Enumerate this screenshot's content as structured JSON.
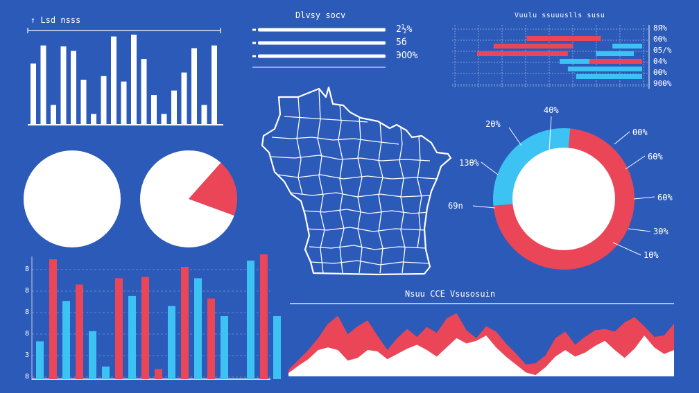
{
  "panels": {
    "top_left": {
      "title": "↑ Lsd nsss"
    },
    "top_center": {
      "title": "Dlvsy socv"
    },
    "top_right": {
      "title": "Vuulu ssuuuslls susu"
    },
    "lower_right": {
      "title": "Nsuu CCE Vsusosuin"
    }
  },
  "colors": {
    "background": "#2c5ab8",
    "white": "#ffffff",
    "red": "#ea4658",
    "cyan": "#3cc3f4"
  },
  "chart_data": [
    {
      "id": "top-left-bars",
      "type": "bar",
      "title": "↑ Lsd nsss",
      "values": [
        68,
        88,
        22,
        87,
        82,
        50,
        12,
        54,
        98,
        48,
        100,
        73,
        33,
        12,
        38,
        58,
        85,
        22,
        88
      ],
      "ylim": [
        0,
        100
      ]
    },
    {
      "id": "top-center-progress",
      "type": "bar",
      "title": "Dlvsy socv",
      "series": [
        {
          "label": "2½%",
          "value": 100
        },
        {
          "label": "5б",
          "value": 100
        },
        {
          "label": "ЭОО%",
          "value": 100
        }
      ]
    },
    {
      "id": "top-right-bars",
      "type": "bar",
      "title": "Vuulu ssuuuslls susu",
      "tick_labels": [
        "8Я%",
        "0Ѳ%",
        "Ѳ5/%",
        "Ѳ4%",
        "ѲѲ%",
        "90Ѳ%"
      ],
      "rows": [
        {
          "segments": [
            {
              "color": "red",
              "start": 0.3,
              "end": 0.75
            }
          ]
        },
        {
          "segments": [
            {
              "color": "red",
              "start": 0.1,
              "end": 0.58
            },
            {
              "color": "cyan",
              "start": 0.82,
              "end": 1.0
            }
          ]
        },
        {
          "segments": [
            {
              "color": "red",
              "start": 0.0,
              "end": 0.55
            },
            {
              "color": "cyan",
              "start": 0.72,
              "end": 0.95
            }
          ]
        },
        {
          "segments": [
            {
              "color": "cyan",
              "start": 0.5,
              "end": 0.8
            },
            {
              "color": "red",
              "start": 0.68,
              "end": 1.0
            }
          ]
        },
        {
          "segments": [
            {
              "color": "cyan",
              "start": 0.55,
              "end": 1.0
            }
          ]
        },
        {
          "segments": [
            {
              "color": "cyan",
              "start": 0.6,
              "end": 1.0
            }
          ]
        }
      ]
    },
    {
      "id": "pie-left",
      "type": "pie",
      "slices": [
        {
          "label": "",
          "value": 100,
          "color": "white"
        }
      ]
    },
    {
      "id": "pie-middle",
      "type": "pie",
      "slices": [
        {
          "label": "",
          "value": 81,
          "color": "white"
        },
        {
          "label": "",
          "value": 19,
          "color": "red"
        }
      ]
    },
    {
      "id": "donut-right",
      "type": "pie",
      "slices": [
        {
          "label": "",
          "value": 72,
          "color": "red"
        },
        {
          "label": "",
          "value": 28,
          "color": "cyan"
        }
      ],
      "callouts": [
        "4Ѳ%",
        "2Ѳ%",
        "1ЗѲ%",
        "69n",
        "ѲѲ%",
        "6Ѳ%",
        "6Ѳ%",
        "ЗѲ%",
        "1Ѳ%"
      ]
    },
    {
      "id": "bottom-left-bars",
      "type": "bar",
      "tick_labels": [
        "8",
        "8",
        "8",
        "8",
        "3",
        "8"
      ],
      "series": [
        {
          "color": "cyan",
          "values": [
            30,
            0,
            62,
            0,
            38,
            10,
            0,
            66,
            0,
            0,
            58,
            0,
            80,
            0,
            50,
            0,
            94,
            0,
            50
          ]
        },
        {
          "color": "red",
          "values": [
            0,
            95,
            0,
            75,
            0,
            0,
            80,
            0,
            81,
            8,
            0,
            89,
            0,
            64,
            0,
            0,
            0,
            99,
            0
          ]
        }
      ],
      "ylim": [
        0,
        100
      ]
    },
    {
      "id": "lower-right-area",
      "type": "area",
      "title": "Nsuu CCE Vsusosuin",
      "series": [
        {
          "name": "",
          "color": "red",
          "values": [
            10,
            25,
            40,
            58,
            80,
            92,
            64,
            76,
            85,
            62,
            40,
            58,
            72,
            60,
            75,
            66,
            88,
            96,
            70,
            58,
            76,
            68,
            50,
            35,
            18,
            20,
            32,
            58,
            68,
            48,
            60,
            70,
            72,
            68,
            82,
            90,
            76,
            60,
            62,
            80
          ]
        },
        {
          "name": "",
          "color": "white",
          "values": [
            5,
            16,
            26,
            40,
            44,
            40,
            24,
            28,
            40,
            38,
            26,
            34,
            42,
            48,
            40,
            30,
            44,
            58,
            50,
            54,
            62,
            44,
            30,
            18,
            6,
            2,
            14,
            30,
            40,
            30,
            36,
            46,
            54,
            40,
            28,
            42,
            62,
            44,
            34,
            40
          ]
        }
      ],
      "ylim": [
        0,
        100
      ]
    }
  ]
}
